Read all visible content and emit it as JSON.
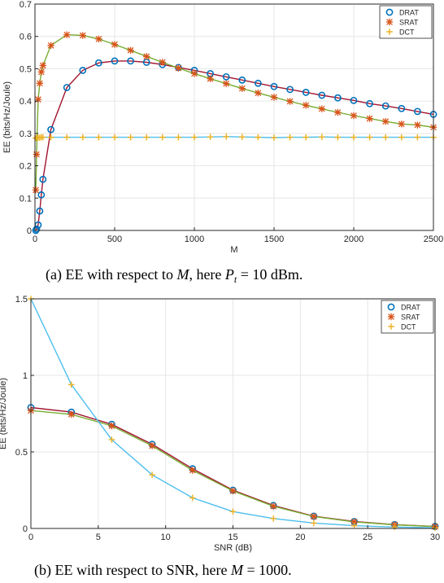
{
  "chart_data": [
    {
      "type": "line",
      "caption": {
        "prefix": "(a)  EE with respect to ",
        "var": "M",
        "mid": ", here ",
        "var2": "P",
        "sub": "t",
        "suffix": " = 10 dBm."
      },
      "xlabel": "M",
      "ylabel": "EE (bits/Hz/Joule)",
      "xlim": [
        0,
        2500
      ],
      "ylim": [
        0,
        0.7
      ],
      "xticks": [
        "0",
        "500",
        "1000",
        "1500",
        "2000",
        "2500"
      ],
      "yticks": [
        "0",
        "0.1",
        "0.2",
        "0.3",
        "0.4",
        "0.5",
        "0.6",
        "0.7"
      ],
      "grid": true,
      "legend_position": "top-right",
      "colors": {
        "DRAT": "#a2142f",
        "SRAT": "#77ac30",
        "DCT": "#4dbeee",
        "marker_o": "#0072bd",
        "marker_x": "#d95319",
        "marker_plus": "#edb120"
      },
      "series": [
        {
          "name": "DRAT",
          "x": [
            5,
            10,
            20,
            30,
            40,
            50,
            100,
            200,
            300,
            400,
            500,
            600,
            700,
            800,
            900,
            1000,
            1100,
            1200,
            1300,
            1400,
            1500,
            1600,
            1700,
            1800,
            1900,
            2000,
            2100,
            2200,
            2300,
            2400,
            2500
          ],
          "y": [
            0.0,
            0.004,
            0.017,
            0.06,
            0.11,
            0.158,
            0.312,
            0.442,
            0.495,
            0.518,
            0.524,
            0.524,
            0.52,
            0.513,
            0.504,
            0.495,
            0.485,
            0.475,
            0.465,
            0.455,
            0.445,
            0.436,
            0.427,
            0.418,
            0.41,
            0.402,
            0.392,
            0.385,
            0.377,
            0.368,
            0.359
          ]
        },
        {
          "name": "SRAT",
          "x": [
            5,
            10,
            20,
            30,
            40,
            50,
            100,
            200,
            300,
            400,
            500,
            600,
            700,
            800,
            900,
            1000,
            1100,
            1200,
            1300,
            1400,
            1500,
            1600,
            1700,
            1800,
            1900,
            2000,
            2100,
            2200,
            2300,
            2400,
            2500
          ],
          "y": [
            0.125,
            0.235,
            0.405,
            0.455,
            0.49,
            0.51,
            0.572,
            0.605,
            0.603,
            0.592,
            0.575,
            0.557,
            0.538,
            0.52,
            0.502,
            0.485,
            0.469,
            0.454,
            0.439,
            0.425,
            0.412,
            0.399,
            0.387,
            0.376,
            0.365,
            0.355,
            0.346,
            0.337,
            0.329,
            0.326,
            0.319
          ]
        },
        {
          "name": "DCT",
          "x": [
            5,
            10,
            20,
            30,
            40,
            50,
            100,
            200,
            300,
            400,
            500,
            600,
            700,
            800,
            900,
            1000,
            1100,
            1200,
            1300,
            1400,
            1500,
            1600,
            1700,
            1800,
            1900,
            2000,
            2100,
            2200,
            2300,
            2400,
            2500
          ],
          "y": [
            0.285,
            0.287,
            0.287,
            0.287,
            0.288,
            0.288,
            0.288,
            0.288,
            0.288,
            0.288,
            0.288,
            0.288,
            0.288,
            0.288,
            0.288,
            0.288,
            0.289,
            0.29,
            0.289,
            0.288,
            0.287,
            0.288,
            0.288,
            0.289,
            0.288,
            0.288,
            0.288,
            0.288,
            0.288,
            0.288,
            0.288
          ]
        }
      ]
    },
    {
      "type": "line",
      "caption": {
        "prefix": "(b)  EE with respect to SNR, here ",
        "var": "M",
        "suffix": " = 1000."
      },
      "xlabel": "SNR (dB)",
      "ylabel": "EE (bits/Hz/Joule)",
      "xlim": [
        0,
        30
      ],
      "ylim": [
        0,
        1.5
      ],
      "xticks": [
        "0",
        "5",
        "10",
        "15",
        "20",
        "25",
        "30"
      ],
      "yticks": [
        "0",
        "0.5",
        "1",
        "1.5"
      ],
      "grid": true,
      "legend_position": "top-right",
      "colors": {
        "DRAT": "#a2142f",
        "SRAT": "#77ac30",
        "DCT": "#4dbeee",
        "marker_o": "#0072bd",
        "marker_x": "#d95319",
        "marker_plus": "#edb120"
      },
      "series": [
        {
          "name": "DRAT",
          "x": [
            0,
            3,
            6,
            9,
            12,
            15,
            18,
            21,
            24,
            27,
            30
          ],
          "y": [
            0.79,
            0.76,
            0.68,
            0.55,
            0.39,
            0.25,
            0.15,
            0.08,
            0.045,
            0.025,
            0.013
          ]
        },
        {
          "name": "SRAT",
          "x": [
            0,
            3,
            6,
            9,
            12,
            15,
            18,
            21,
            24,
            27,
            30
          ],
          "y": [
            0.77,
            0.745,
            0.67,
            0.54,
            0.38,
            0.245,
            0.145,
            0.078,
            0.043,
            0.024,
            0.012
          ]
        },
        {
          "name": "DCT",
          "x": [
            0,
            3,
            6,
            9,
            12,
            15,
            18,
            21,
            24,
            27,
            30
          ],
          "y": [
            1.5,
            0.94,
            0.58,
            0.35,
            0.2,
            0.11,
            0.065,
            0.035,
            0.018,
            0.009,
            0.004
          ]
        }
      ]
    }
  ]
}
